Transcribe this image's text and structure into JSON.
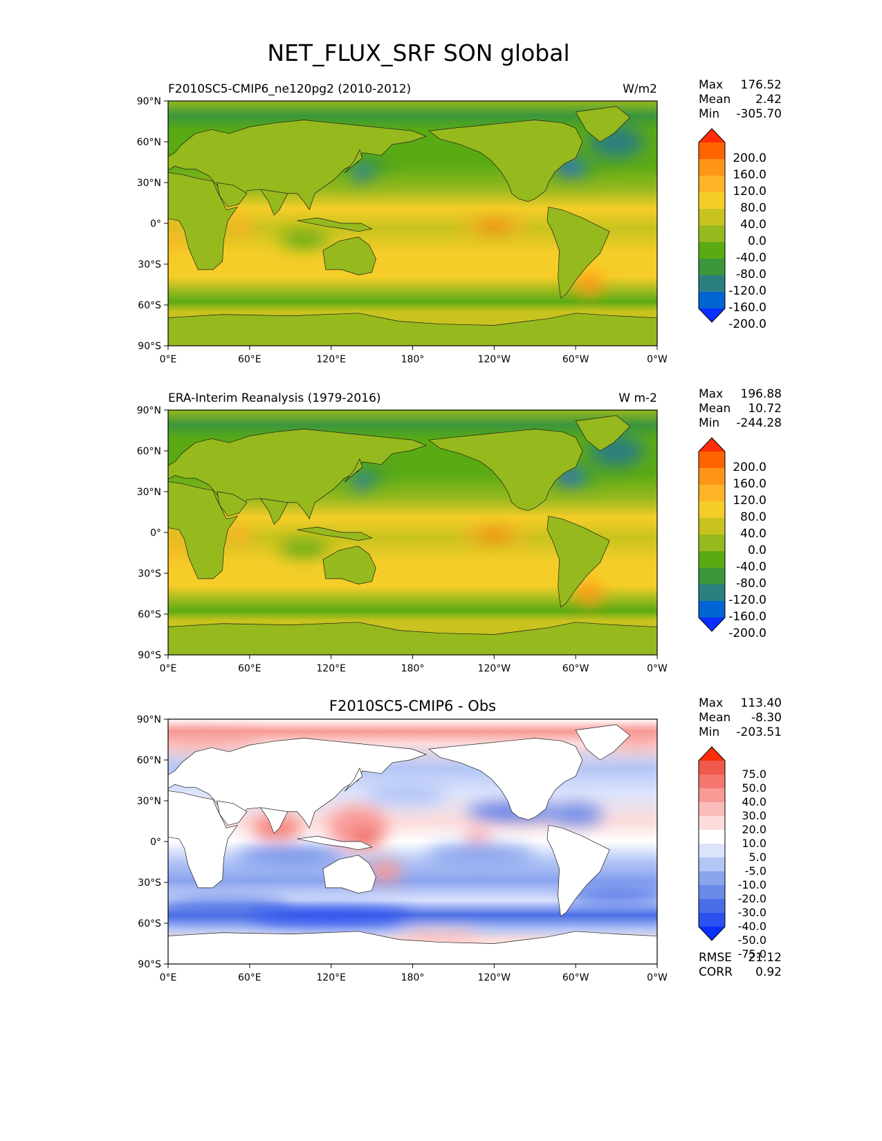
{
  "title": "NET_FLUX_SRF SON global",
  "axes": {
    "lat_ticks": [
      "90°N",
      "60°N",
      "30°N",
      "0°",
      "30°S",
      "60°S",
      "90°S"
    ],
    "lon_ticks": [
      "0°E",
      "60°E",
      "120°E",
      "180°",
      "120°W",
      "60°W",
      "0°W"
    ]
  },
  "colors": {
    "abs_scale": [
      "#0a2fff",
      "#0064d2",
      "#2c7f7f",
      "#3c963c",
      "#5aaa14",
      "#96b91e",
      "#c8c31e",
      "#f5cd28",
      "#ffb428",
      "#ff9619",
      "#ff6400",
      "#ff2d0a"
    ],
    "diff_scale": [
      "#0a2fff",
      "#2a50f0",
      "#4a6ee6",
      "#6a8ae8",
      "#8aa4ee",
      "#b4c6f6",
      "#dce4fc",
      "#ffffff",
      "#fcdcdc",
      "#fcbcbc",
      "#f89a96",
      "#f4786e",
      "#ee5a4c",
      "#ff2d0a"
    ],
    "coast": "#1a1a1a"
  },
  "panels": [
    {
      "id": "test",
      "left_title": "F2010SC5-CMIP6_ne120pg2 (2010-2012)",
      "center_title": "",
      "units": "W/m2",
      "stats": [
        {
          "label": "Max",
          "value": "176.52"
        },
        {
          "label": "Mean",
          "value": "2.42"
        },
        {
          "label": "Min",
          "value": "-305.70"
        }
      ],
      "colorbar_levels": [
        "200.0",
        "160.0",
        "120.0",
        "80.0",
        "40.0",
        "0.0",
        "-40.0",
        "-80.0",
        "-120.0",
        "-160.0",
        "-200.0"
      ],
      "extra": []
    },
    {
      "id": "ref",
      "left_title": "ERA-Interim Reanalysis (1979-2016)",
      "center_title": "",
      "units": "W m-2",
      "stats": [
        {
          "label": "Max",
          "value": "196.88"
        },
        {
          "label": "Mean",
          "value": "10.72"
        },
        {
          "label": "Min",
          "value": "-244.28"
        }
      ],
      "colorbar_levels": [
        "200.0",
        "160.0",
        "120.0",
        "80.0",
        "40.0",
        "0.0",
        "-40.0",
        "-80.0",
        "-120.0",
        "-160.0",
        "-200.0"
      ],
      "extra": []
    },
    {
      "id": "diff",
      "left_title": "",
      "center_title": "F2010SC5-CMIP6 - Obs",
      "units": "",
      "stats": [
        {
          "label": "Max",
          "value": "113.40"
        },
        {
          "label": "Mean",
          "value": "-8.30"
        },
        {
          "label": "Min",
          "value": "-203.51"
        }
      ],
      "colorbar_levels": [
        "75.0",
        "50.0",
        "40.0",
        "30.0",
        "20.0",
        "10.0",
        "5.0",
        "-5.0",
        "-10.0",
        "-20.0",
        "-30.0",
        "-40.0",
        "-50.0",
        "-75.0"
      ],
      "extra": [
        {
          "label": "RMSE",
          "value": "21.12"
        },
        {
          "label": "CORR",
          "value": "0.92"
        }
      ]
    }
  ]
}
